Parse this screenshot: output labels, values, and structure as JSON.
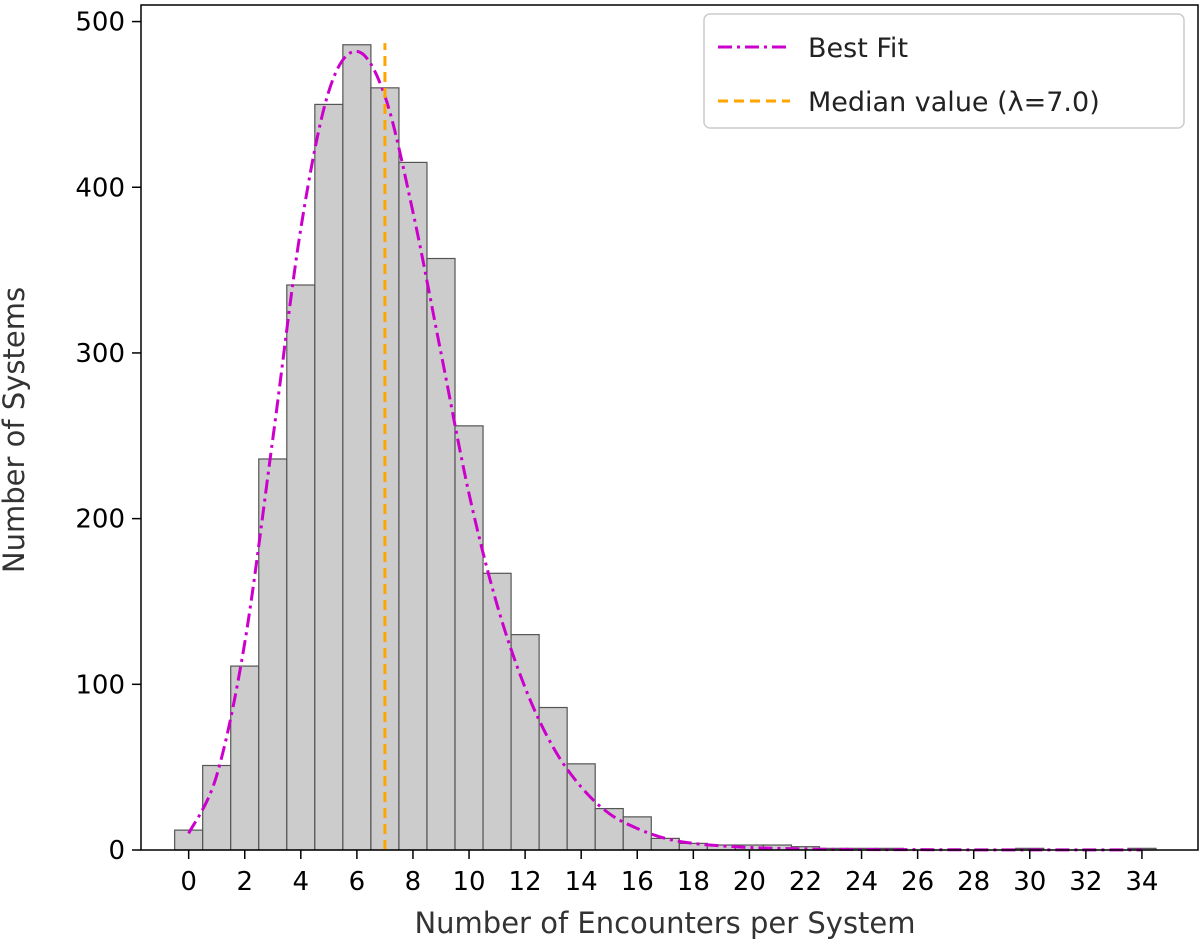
{
  "chart_data": {
    "type": "bar",
    "xlabel": "Number of Encounters per System",
    "ylabel": "Number of Systems",
    "xlim": [
      -1.7,
      36.0
    ],
    "ylim": [
      0,
      510
    ],
    "xticks": [
      0,
      2,
      4,
      6,
      8,
      10,
      12,
      14,
      16,
      18,
      20,
      22,
      24,
      26,
      28,
      30,
      32,
      34
    ],
    "yticks": [
      0,
      100,
      200,
      300,
      400,
      500
    ],
    "bins": [
      0,
      1,
      2,
      3,
      4,
      5,
      6,
      7,
      8,
      9,
      10,
      11,
      12,
      13,
      14,
      15,
      16,
      17,
      18,
      19,
      20,
      21,
      22,
      23,
      24,
      25,
      26,
      27,
      28,
      29,
      30,
      31,
      32,
      33,
      34
    ],
    "counts": [
      12,
      51,
      111,
      236,
      341,
      450,
      486,
      460,
      415,
      357,
      256,
      167,
      130,
      86,
      52,
      25,
      20,
      7,
      4,
      3,
      3,
      3,
      2,
      1,
      1,
      1,
      0,
      0,
      0,
      0,
      1,
      0,
      0,
      0,
      1
    ],
    "fit": {
      "name": "Best Fit",
      "x": [
        0,
        1,
        2,
        3,
        4,
        5,
        6,
        7,
        8,
        9,
        10,
        11,
        12,
        13,
        14,
        15,
        16,
        17,
        18,
        19,
        20,
        21,
        22,
        23,
        24,
        26,
        28,
        30,
        32,
        34
      ],
      "y": [
        10,
        45,
        125,
        248,
        375,
        458,
        482,
        455,
        385,
        300,
        215,
        148,
        98,
        62,
        38,
        22,
        13,
        7,
        4,
        2.5,
        1.5,
        1,
        0.6,
        0.4,
        0.3,
        0.2,
        0.1,
        0.1,
        0.1,
        0.1
      ],
      "color": "#cc00cc"
    },
    "median": {
      "name": "Median value (λ=7.0)",
      "x": 7.0,
      "color": "#ffa500"
    },
    "bar_color": "#cccccc",
    "bar_edge_color": "#555555",
    "grid": false,
    "legend_position": "top-right"
  }
}
